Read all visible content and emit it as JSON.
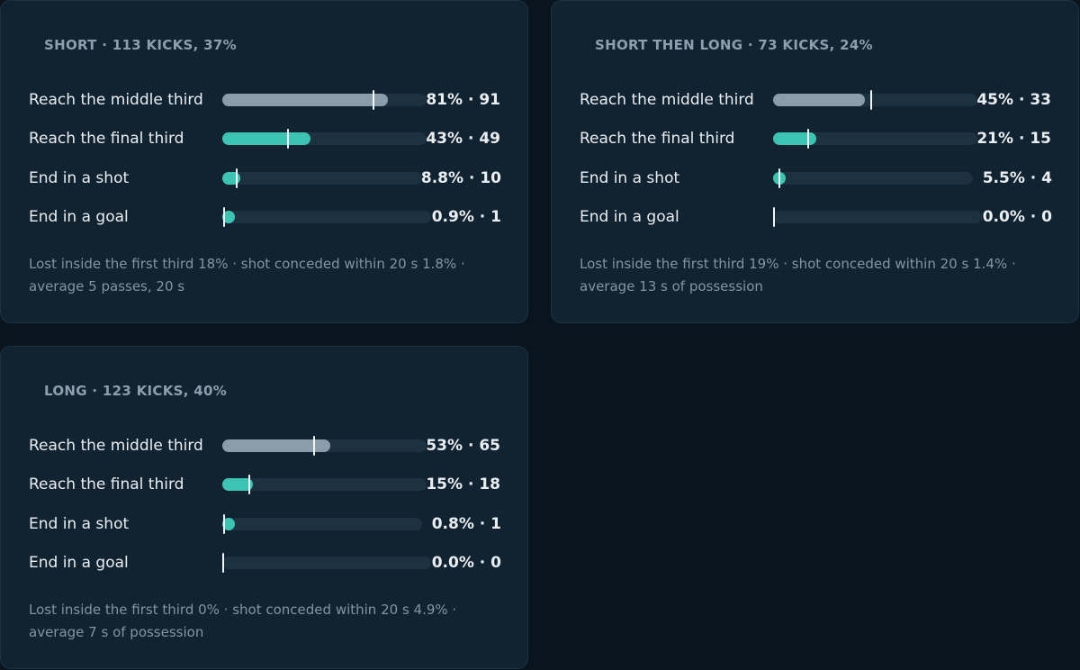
{
  "chart_data": [
    {
      "type": "bar",
      "title": "SHORT · 113 KICKS, 37%",
      "categories": [
        "Reach the middle third",
        "Reach the final third",
        "End in a shot",
        "End in a goal"
      ],
      "values": [
        81,
        43,
        8.8,
        0.9
      ],
      "counts": [
        91,
        49,
        10,
        1
      ],
      "value_labels": [
        "81% · 91",
        "43% · 49",
        "8.8% · 10",
        "0.9% · 1"
      ],
      "marker_values": [
        74,
        32,
        7,
        1
      ],
      "ylim": [
        0,
        100
      ],
      "footnote": "Lost inside the first third 18% · shot conceded within 20 s 1.8% · average 5 passes, 20 s"
    },
    {
      "type": "bar",
      "title": "SHORT THEN LONG · 73 KICKS, 24%",
      "categories": [
        "Reach the middle third",
        "Reach the final third",
        "End in a shot",
        "End in a goal"
      ],
      "values": [
        45,
        21,
        5.5,
        0.0
      ],
      "counts": [
        33,
        15,
        4,
        0
      ],
      "value_labels": [
        "45% · 33",
        "21% · 15",
        "5.5% · 4",
        "0.0% · 0"
      ],
      "marker_values": [
        48,
        17,
        3,
        0
      ],
      "ylim": [
        0,
        100
      ],
      "footnote": "Lost inside the first third 19% · shot conceded within 20 s 1.4% · average 13 s of possession"
    },
    {
      "type": "bar",
      "title": "LONG · 123 KICKS, 40%",
      "categories": [
        "Reach the middle third",
        "Reach the final third",
        "End in a shot",
        "End in a goal"
      ],
      "values": [
        53,
        15,
        0.8,
        0.0
      ],
      "counts": [
        65,
        18,
        1,
        0
      ],
      "value_labels": [
        "53% · 65",
        "15% · 18",
        "0.8% · 1",
        "0.0% · 0"
      ],
      "marker_values": [
        45,
        13,
        1,
        0
      ],
      "ylim": [
        0,
        100
      ],
      "footnote": "Lost inside the first third 0% · shot conceded within 20 s 4.9% · average 7 s of possession"
    }
  ],
  "colors": {
    "middle_third_fill": "#8b9da9",
    "other_fill": "#3cc3b2",
    "track": "#1d3240",
    "marker": "#f2f5f7"
  }
}
